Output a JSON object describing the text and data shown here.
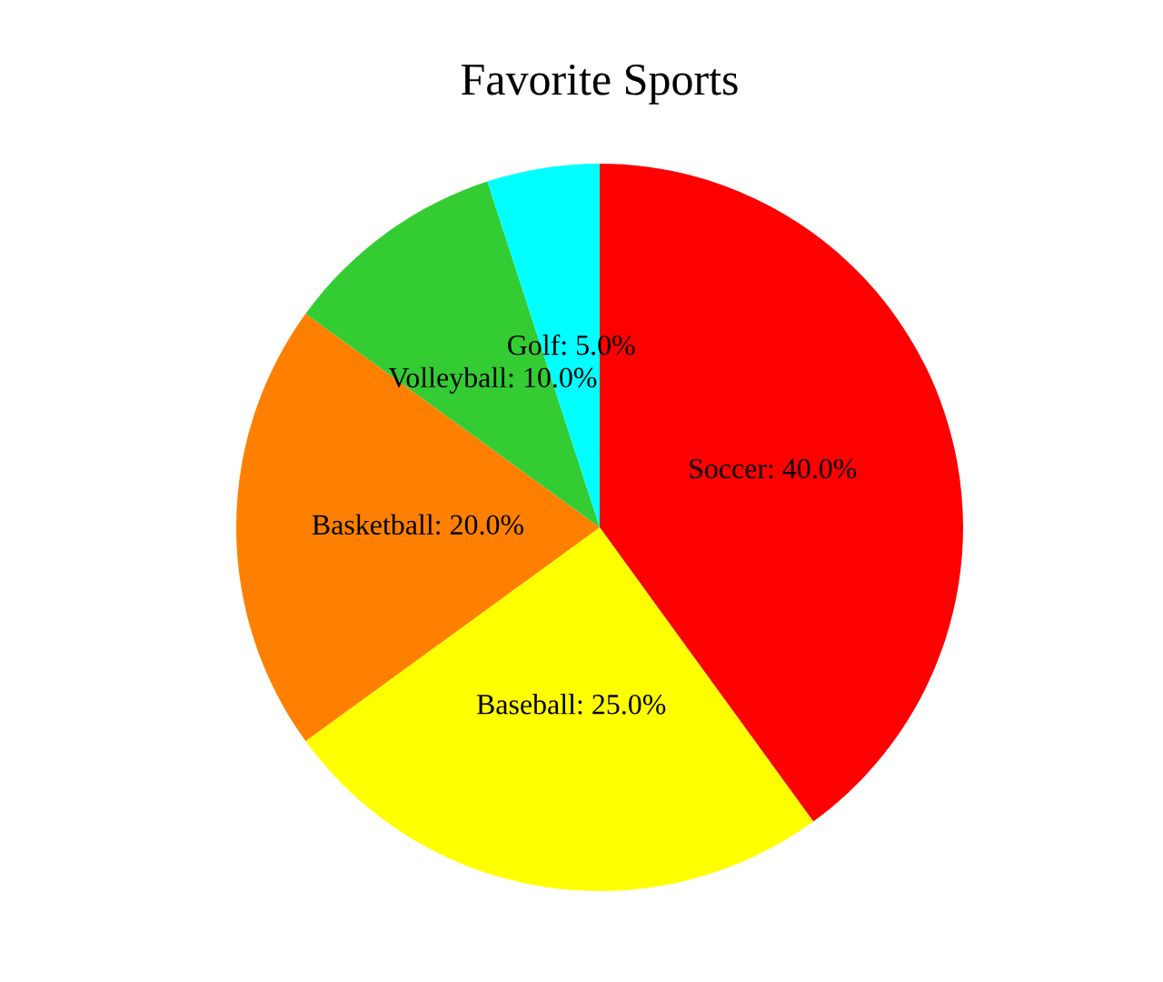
{
  "chart_data": {
    "type": "pie",
    "title": "Favorite Sports",
    "categories": [
      "Soccer",
      "Baseball",
      "Basketball",
      "Volleyball",
      "Golf"
    ],
    "values": [
      40,
      25,
      20,
      10,
      5
    ],
    "colors": [
      "#ff0000",
      "#ffff00",
      "#ff8000",
      "#33cc33",
      "#00ffff"
    ],
    "value_labels": [
      "40.0%",
      "25.0%",
      "20.0%",
      "10.0%",
      "5.0%"
    ],
    "legend": false
  }
}
